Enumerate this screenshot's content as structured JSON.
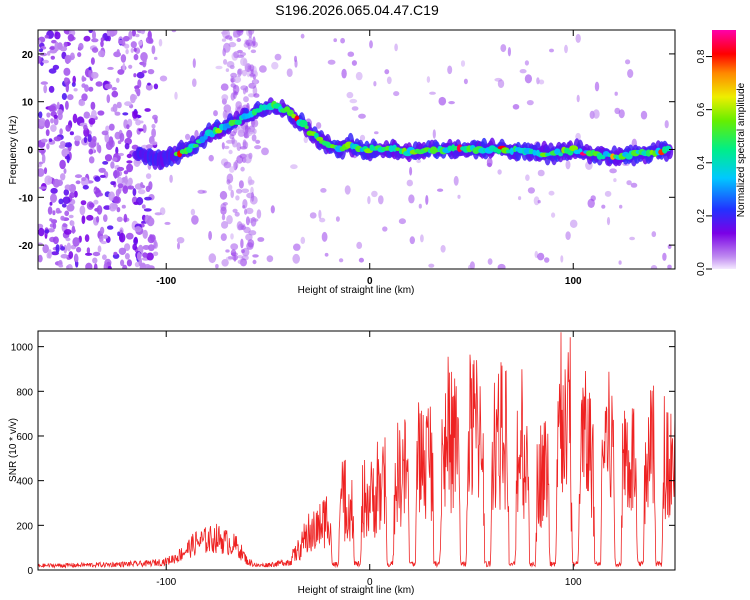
{
  "title": "S196.2026.065.04.47.C19",
  "chart_data": [
    {
      "type": "heatmap",
      "xlabel": "Height of straight line (km)",
      "ylabel": "Frequency (Hz)",
      "xlim": [
        -163,
        150
      ],
      "ylim": [
        -25,
        25
      ],
      "xticks": [
        -100,
        0,
        100
      ],
      "yticks": [
        -20,
        -10,
        0,
        10,
        20
      ],
      "ridge": {
        "x": [
          -115,
          -105,
          -95,
          -90,
          -85,
          -80,
          -75,
          -70,
          -65,
          -60,
          -55,
          -50,
          -45,
          -40,
          -35,
          -30,
          -25,
          -20,
          -15,
          -10,
          -5,
          0,
          10,
          20,
          30,
          40,
          50,
          60,
          70,
          80,
          90,
          100,
          110,
          120,
          130,
          140,
          148
        ],
        "freq": [
          -1,
          -2,
          -1,
          0,
          1,
          3,
          4,
          5,
          6,
          7,
          8,
          9,
          9,
          8,
          6,
          4,
          2,
          1,
          0,
          1,
          0,
          0,
          0,
          -0.5,
          0,
          0,
          0,
          0,
          0,
          -0.5,
          -1,
          0,
          -1,
          -1.5,
          -1,
          -0.5,
          0
        ]
      },
      "colorbar": {
        "label": "Normalized spectral amplitude",
        "range": [
          0.0,
          0.9
        ],
        "ticks": [
          0.0,
          0.2,
          0.4,
          0.6,
          0.8
        ],
        "tick_labels": [
          "0.0",
          "0.2",
          "0.4",
          "0.6",
          "0.8"
        ]
      }
    },
    {
      "type": "line",
      "xlabel": "Height of straight line (km)",
      "ylabel": "SNR (10 * v/v)",
      "xlim": [
        -163,
        150
      ],
      "ylim": [
        0,
        1070
      ],
      "xticks": [
        -100,
        0,
        100
      ],
      "yticks": [
        0,
        200,
        400,
        600,
        800,
        1000
      ],
      "color": "#ee2222",
      "envelope": {
        "x": [
          -163,
          -130,
          -110,
          -100,
          -95,
          -85,
          -75,
          -65,
          -60,
          -55,
          -50,
          -45,
          -40,
          -35,
          -30,
          -25,
          -20,
          -15,
          -10,
          -5,
          0,
          5,
          10,
          15,
          20,
          25,
          30,
          35,
          40,
          45,
          50,
          55,
          60,
          65,
          70,
          75,
          80,
          85,
          90,
          95,
          100,
          105,
          110,
          115,
          120,
          125,
          130,
          135,
          140,
          145,
          150
        ],
        "snr": [
          20,
          25,
          30,
          40,
          60,
          130,
          150,
          110,
          40,
          20,
          25,
          30,
          40,
          110,
          180,
          230,
          300,
          340,
          360,
          400,
          380,
          420,
          500,
          520,
          560,
          600,
          620,
          640,
          700,
          720,
          760,
          780,
          760,
          720,
          680,
          640,
          560,
          520,
          600,
          800,
          720,
          700,
          640,
          700,
          680,
          640,
          600,
          620,
          640,
          640,
          600
        ]
      },
      "dropouts_x": [
        -17,
        -6,
        10,
        21,
        33,
        46,
        58,
        70,
        80,
        90,
        101,
        112,
        122,
        133,
        142
      ]
    }
  ]
}
